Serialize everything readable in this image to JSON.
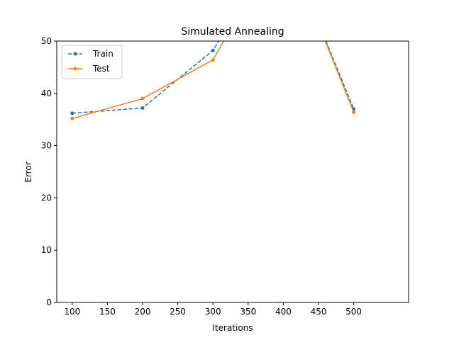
{
  "chart_data": {
    "type": "line",
    "title": "Simulated Annealing",
    "xlabel": "Iterations",
    "ylabel": "Error",
    "xlim": [
      78,
      578
    ],
    "ylim": [
      0,
      50
    ],
    "xticks": [
      100,
      150,
      200,
      250,
      300,
      350,
      400,
      450,
      500
    ],
    "yticks": [
      0,
      10,
      20,
      30,
      40,
      50
    ],
    "x": [
      100,
      200,
      300,
      400,
      500
    ],
    "series": [
      {
        "name": "Train",
        "values": [
          36.2,
          37.2,
          48.2,
          70.0,
          37.0
        ],
        "color": "#1f77b4",
        "linestyle": "dashed",
        "marker": "dot"
      },
      {
        "name": "Test",
        "values": [
          35.2,
          39.0,
          46.4,
          70.0,
          36.4
        ],
        "color": "#ff7f0e",
        "linestyle": "solid",
        "marker": "dot"
      }
    ],
    "grid": false,
    "legend_position": "top-left"
  }
}
